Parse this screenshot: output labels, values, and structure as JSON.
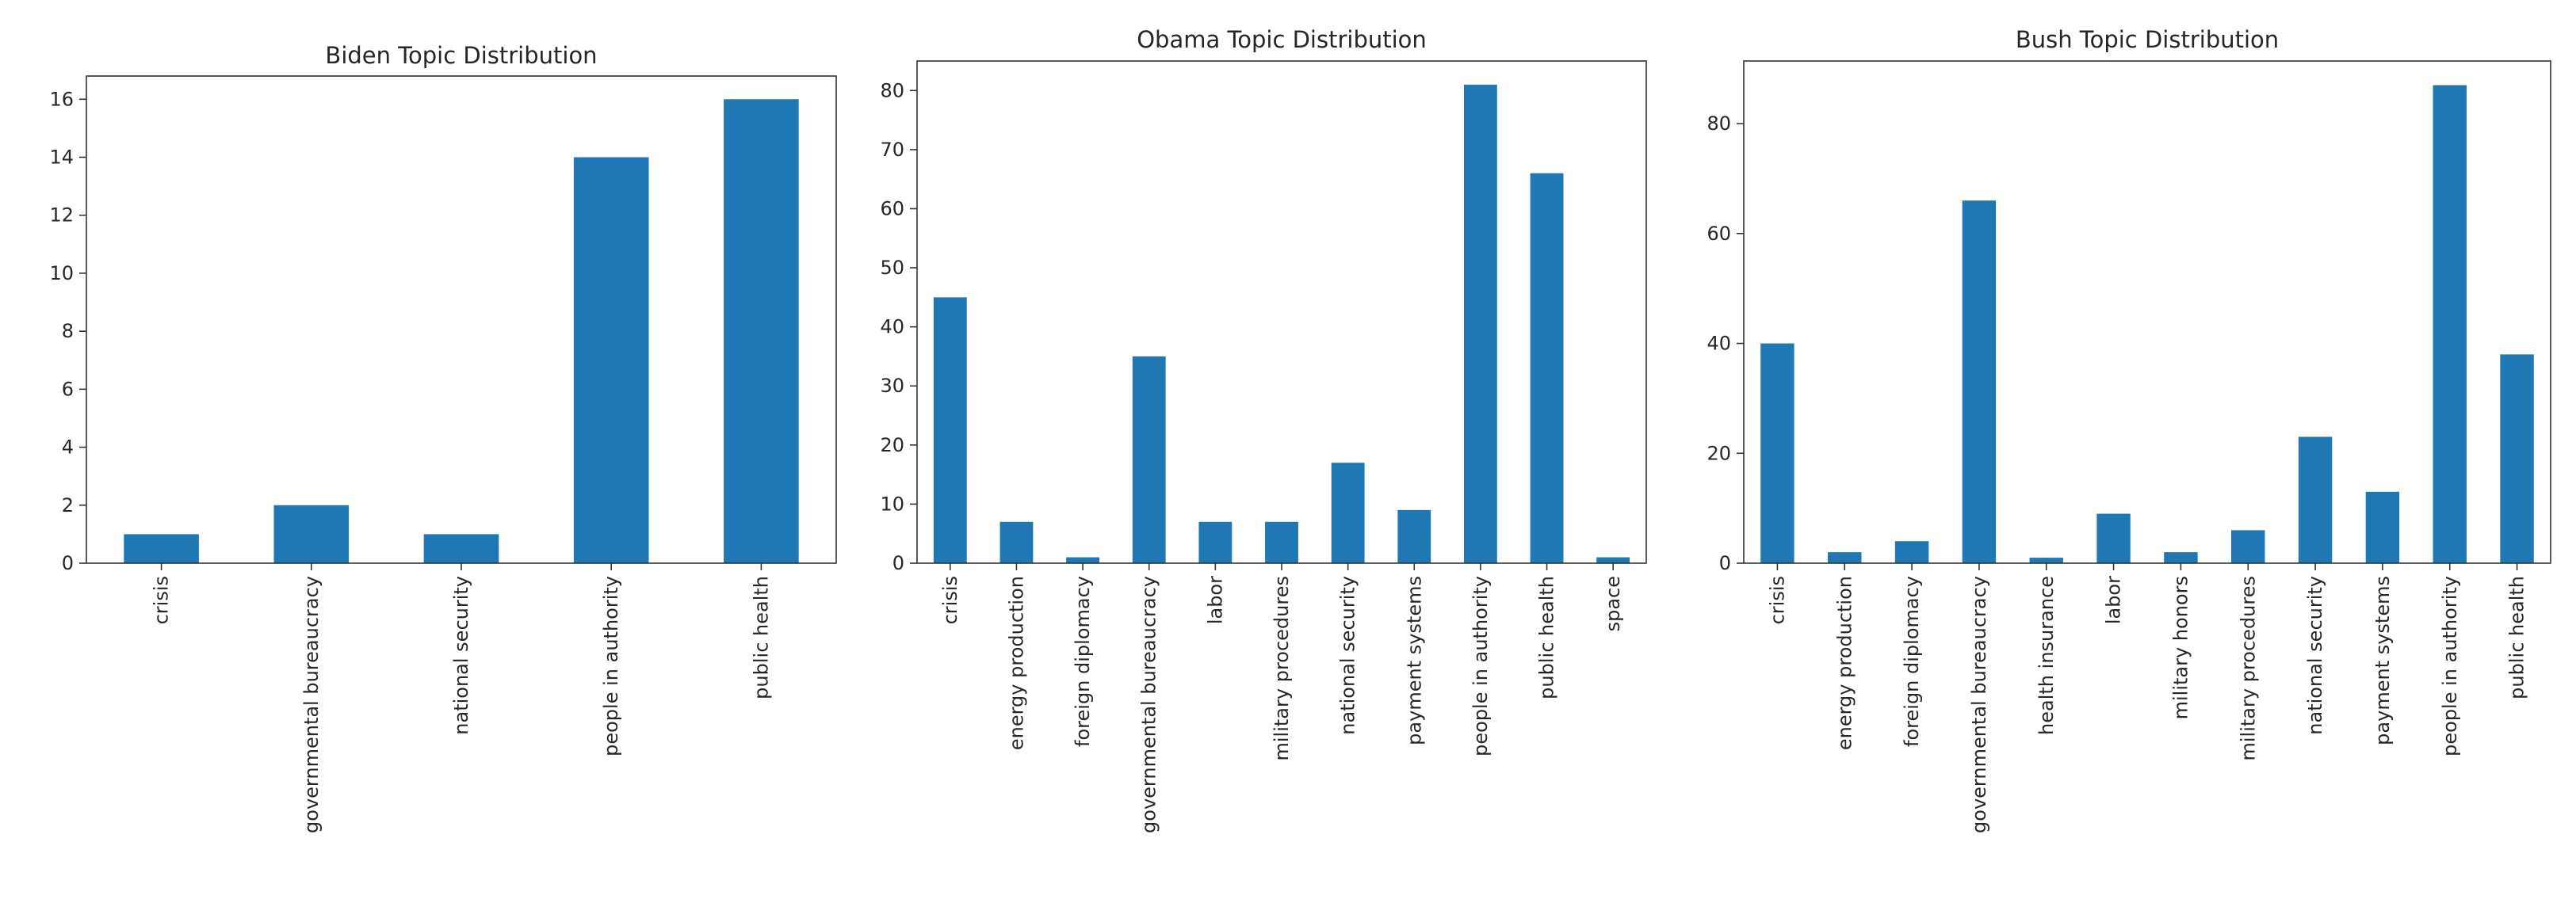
{
  "chart_data": [
    {
      "type": "bar",
      "title": "Biden Topic Distribution",
      "categories": [
        "crisis",
        "governmental bureaucracy",
        "national security",
        "people in authority",
        "public health"
      ],
      "values": [
        1,
        2,
        1,
        14,
        16
      ],
      "xlabel": "",
      "ylabel": "",
      "ylim": [
        0,
        16.8
      ],
      "yticks": [
        0,
        2,
        4,
        6,
        8,
        10,
        12,
        14,
        16
      ],
      "grid": false,
      "bar_color": "#1f77b4"
    },
    {
      "type": "bar",
      "title": "Obama Topic Distribution",
      "categories": [
        "crisis",
        "energy production",
        "foreign diplomacy",
        "governmental bureaucracy",
        "labor",
        "military procedures",
        "national security",
        "payment systems",
        "people in authority",
        "public health",
        "space"
      ],
      "values": [
        45,
        7,
        1,
        35,
        7,
        7,
        17,
        9,
        81,
        66,
        1
      ],
      "xlabel": "",
      "ylabel": "",
      "ylim": [
        0,
        85
      ],
      "yticks": [
        0,
        10,
        20,
        30,
        40,
        50,
        60,
        70,
        80
      ],
      "grid": false,
      "bar_color": "#1f77b4"
    },
    {
      "type": "bar",
      "title": "Bush Topic Distribution",
      "categories": [
        "crisis",
        "energy production",
        "foreign diplomacy",
        "governmental bureaucracy",
        "health insurance",
        "labor",
        "military honors",
        "military procedures",
        "national security",
        "payment systems",
        "people in authority",
        "public health"
      ],
      "values": [
        40,
        2,
        4,
        66,
        1,
        9,
        2,
        6,
        23,
        13,
        87,
        38
      ],
      "xlabel": "",
      "ylabel": "",
      "ylim": [
        0,
        91.4
      ],
      "yticks": [
        0,
        20,
        40,
        60,
        80
      ],
      "grid": false,
      "bar_color": "#1f77b4"
    }
  ]
}
